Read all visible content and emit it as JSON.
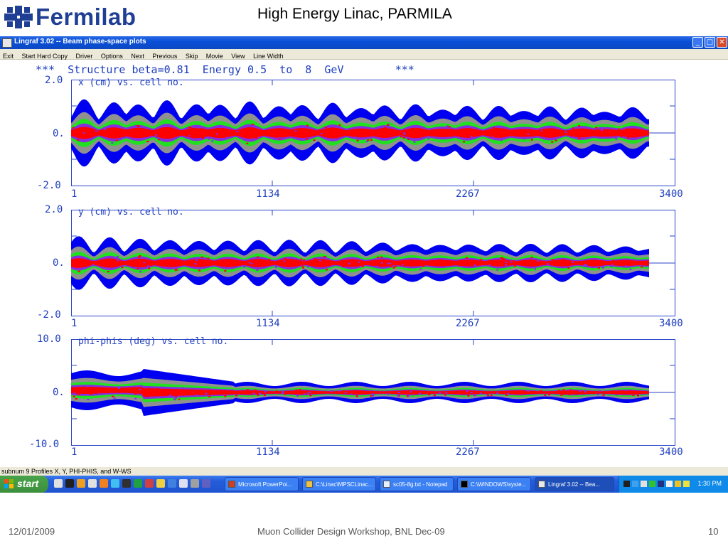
{
  "slide": {
    "logo_text": "Fermilab",
    "title": "High Energy Linac, PARMILA",
    "footer_date": "12/01/2009",
    "footer_center": "Muon Collider Design Workshop, BNL Dec-09",
    "footer_page": "10"
  },
  "window": {
    "title": "Lingraf 3.02 --  Beam phase-space plots",
    "menu": [
      "Exit",
      "Start Hard Copy",
      "Driver",
      "Options",
      "Next",
      "Previous",
      "Skip",
      "Movie",
      "View",
      "Line Width"
    ],
    "minimize_glyph": "_",
    "maximize_glyph": "□",
    "close_glyph": "✕"
  },
  "plot": {
    "header": "***  Structure beta=0.81  Energy 0.5  to  8  GeV        ***",
    "panels": [
      {
        "label": "x (cm) vs. cell no.",
        "yticks": [
          "2.0",
          "0.",
          "-2.0"
        ],
        "xticks": [
          "1",
          "1134",
          "2267",
          "3400"
        ]
      },
      {
        "label": "y (cm) vs. cell no.",
        "yticks": [
          "2.0",
          "0.",
          "-2.0"
        ],
        "xticks": [
          "1",
          "1134",
          "2267",
          "3400"
        ]
      },
      {
        "label": "phi-phis (deg) vs. cell no.",
        "yticks": [
          "10.0",
          "0.",
          "-10.0"
        ],
        "xticks": [
          "1",
          "1134",
          "2267",
          "3400"
        ]
      }
    ],
    "colors": {
      "axis": "#2a44c8",
      "outer": "#0000f0",
      "mid": "#909090",
      "green": "#20e020",
      "red": "#ff0000",
      "purple": "#8a2be2"
    }
  },
  "status_bar": "subnum 9   Profiles X, Y, PHI-PHIS, and W-WS",
  "taskbar": {
    "start_label": "start",
    "tasks": [
      {
        "label": "Microsoft PowerPoi...",
        "icon": "powerpoint-icon"
      },
      {
        "label": "C:\\Linac\\MPSCLinac...",
        "icon": "folder-icon"
      },
      {
        "label": "sc05-8g.txt - Notepad",
        "icon": "notepad-icon"
      },
      {
        "label": "C:\\WINDOWS\\syste...",
        "icon": "console-icon"
      },
      {
        "label": "Lingraf 3.02 -- Bea...",
        "icon": "lingraf-icon"
      }
    ],
    "clock": "1:30 PM"
  }
}
